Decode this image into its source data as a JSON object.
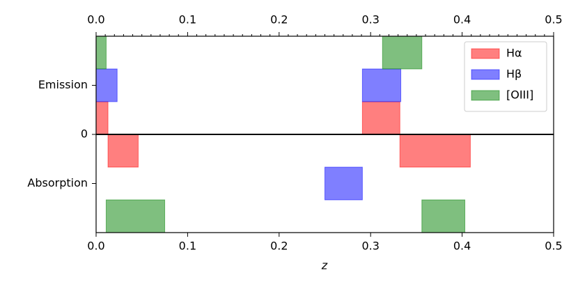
{
  "chart_data": {
    "type": "range",
    "xlabel": "z",
    "xlim": [
      0,
      0.5
    ],
    "xticks": [
      {
        "value": 0,
        "label": "0.0"
      },
      0.1,
      0.2,
      0.3,
      0.4,
      0.5
    ],
    "ylim": [
      -3,
      3
    ],
    "yticks": [
      {
        "value": 1.5,
        "label": "Emission"
      },
      0,
      {
        "value": -1.5,
        "label": "Absorption"
      }
    ],
    "legend": "upper right",
    "series": [
      {
        "name": "Hα",
        "color": "#ff0000",
        "emission": [
          [
            0,
            0.013
          ],
          [
            0.291,
            0.332
          ]
        ],
        "absorption": [
          [
            0.013,
            0.046
          ],
          [
            0.332,
            0.409
          ]
        ]
      },
      {
        "name": "Hβ",
        "color": "#0000ff",
        "emission": [
          [
            0,
            0.023
          ],
          [
            0.291,
            0.333
          ]
        ],
        "absorption": [
          [
            0.25,
            0.291
          ]
        ]
      },
      {
        "name": "[OIII]",
        "color": "#008000",
        "emission": [
          [
            0,
            0.011
          ],
          [
            0.313,
            0.356
          ]
        ],
        "absorption": [
          [
            0.011,
            0.075
          ],
          [
            0.356,
            0.403
          ]
        ]
      }
    ]
  }
}
